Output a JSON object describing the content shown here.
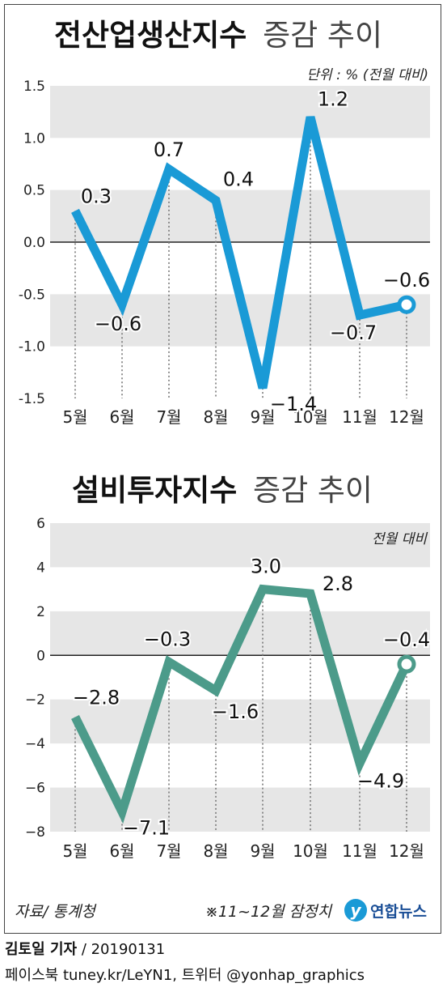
{
  "charts": [
    {
      "title_bold": "전산업생산지수",
      "title_light": "증감 추이",
      "unit_note": "단위 : % (전월 대비)"
    },
    {
      "title_bold": "설비투자지수",
      "title_light": "증감 추이",
      "unit_note": "전월 대비"
    }
  ],
  "chart_data": [
    {
      "type": "line",
      "categories": [
        "5월",
        "6월",
        "7월",
        "8월",
        "9월",
        "10월",
        "11월",
        "12월"
      ],
      "values": [
        0.3,
        -0.6,
        0.7,
        0.4,
        -1.4,
        1.2,
        -0.7,
        -0.6
      ],
      "value_labels": [
        "0.3",
        "−0.6",
        "0.7",
        "0.4",
        "−1.4",
        "1.2",
        "−0.7",
        "−0.6"
      ],
      "yticks": [
        "1.5",
        "1.0",
        "0.5",
        "0.0",
        "-0.5",
        "-1.0",
        "-1.5"
      ],
      "ylim": [
        -1.5,
        1.5
      ],
      "color": "#1a9ad6",
      "grid": "alternating horizontal bands"
    },
    {
      "type": "line",
      "categories": [
        "5월",
        "6월",
        "7월",
        "8월",
        "9월",
        "10월",
        "11월",
        "12월"
      ],
      "values": [
        -2.8,
        -7.1,
        -0.3,
        -1.6,
        3.0,
        2.8,
        -4.9,
        -0.4
      ],
      "value_labels": [
        "−2.8",
        "−7.1",
        "−0.3",
        "−1.6",
        "3.0",
        "2.8",
        "−4.9",
        "−0.4"
      ],
      "yticks": [
        "6",
        "4",
        "2",
        "0",
        "−2",
        "−4",
        "−6",
        "−8"
      ],
      "ylim": [
        -8,
        6
      ],
      "color": "#4c9b8a",
      "grid": "alternating horizontal bands"
    }
  ],
  "footer": {
    "source": "자료/ 통계청",
    "note": "※11~12월 잠정치",
    "logo_text": "연합뉴스",
    "author": "김토일 기자",
    "date": "/ 20190131",
    "sns": "페이스북 tuney.kr/LeYN1, 트위터 @yonhap_graphics"
  }
}
